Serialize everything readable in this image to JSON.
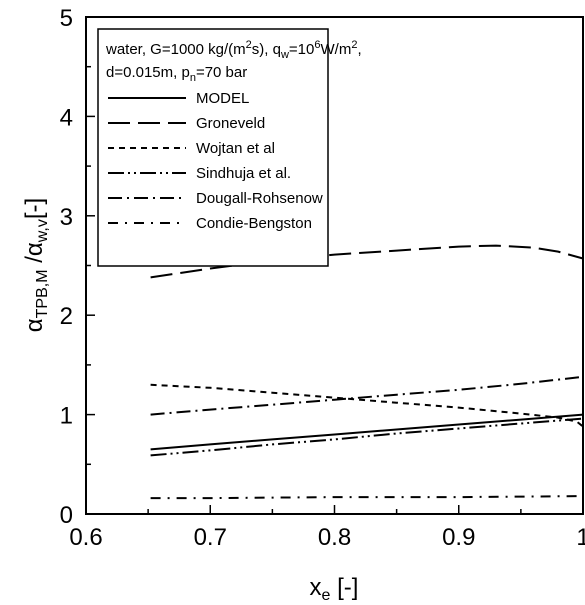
{
  "chart_data": {
    "type": "line",
    "xlabel": {
      "main": "x",
      "sub": "e",
      "tail": " [-]"
    },
    "ylabel": {
      "alpha": "α",
      "sub1": "TPB,M",
      "slash": " /",
      "sub2": "w,v",
      "tail": "[-]"
    },
    "xlim": [
      0.6,
      1.0
    ],
    "ylim": [
      0,
      5
    ],
    "xticks": [
      0.6,
      0.7,
      0.8,
      0.9,
      1.0
    ],
    "xtick_labels": [
      "0.6",
      "0.7",
      "0.8",
      "0.9",
      "1"
    ],
    "yticks": [
      0,
      1,
      2,
      3,
      4,
      5
    ],
    "ytick_labels": [
      "0",
      "1",
      "2",
      "3",
      "4",
      "5"
    ],
    "grid": false,
    "legend_position": "top-left",
    "conditions": {
      "line1": [
        {
          "t": "water, G=1000 kg/(m"
        },
        {
          "t": "2",
          "sup": true
        },
        {
          "t": "s), q"
        },
        {
          "t": "w",
          "sub": true
        },
        {
          "t": "=10"
        },
        {
          "t": "6",
          "sup": true
        },
        {
          "t": "W/m"
        },
        {
          "t": "2",
          "sup": true
        },
        {
          "t": ","
        }
      ],
      "line2": [
        {
          "t": "d=0.015m, p"
        },
        {
          "t": "n",
          "sub": true
        },
        {
          "t": "=70 bar"
        }
      ]
    },
    "series": [
      {
        "name": "MODEL",
        "dash": "solid",
        "x": [
          0.652,
          0.7,
          0.75,
          0.8,
          0.85,
          0.9,
          0.95,
          1.0
        ],
        "y": [
          0.65,
          0.7,
          0.75,
          0.8,
          0.85,
          0.9,
          0.95,
          1.0
        ]
      },
      {
        "name": "Groneveld",
        "dash": "long-dash",
        "x": [
          0.652,
          0.7,
          0.75,
          0.8,
          0.85,
          0.9,
          0.93,
          0.96,
          0.98,
          1.0
        ],
        "y": [
          2.38,
          2.47,
          2.55,
          2.61,
          2.65,
          2.69,
          2.7,
          2.68,
          2.64,
          2.57
        ]
      },
      {
        "name": "Wojtan et al",
        "dash": "short-dash",
        "x": [
          0.652,
          0.7,
          0.75,
          0.8,
          0.85,
          0.9,
          0.95,
          0.98,
          0.995,
          1.0
        ],
        "y": [
          1.3,
          1.27,
          1.22,
          1.17,
          1.12,
          1.07,
          1.01,
          0.97,
          0.93,
          0.88
        ]
      },
      {
        "name": "Sindhuja et al.",
        "dash": "dash-dot-dot",
        "x": [
          0.652,
          0.7,
          0.75,
          0.8,
          0.85,
          0.9,
          0.95,
          1.0
        ],
        "y": [
          0.59,
          0.64,
          0.7,
          0.75,
          0.81,
          0.86,
          0.91,
          0.96
        ]
      },
      {
        "name": "Dougall-Rohsenow",
        "dash": "dash-dot",
        "x": [
          0.652,
          0.7,
          0.75,
          0.8,
          0.85,
          0.9,
          0.95,
          1.0
        ],
        "y": [
          1.0,
          1.05,
          1.1,
          1.15,
          1.2,
          1.25,
          1.31,
          1.38
        ]
      },
      {
        "name": "Condie-Bengston",
        "dash": "long-dash-dot",
        "x": [
          0.652,
          0.7,
          0.8,
          0.9,
          1.0
        ],
        "y": [
          0.16,
          0.16,
          0.17,
          0.17,
          0.18
        ]
      }
    ]
  }
}
